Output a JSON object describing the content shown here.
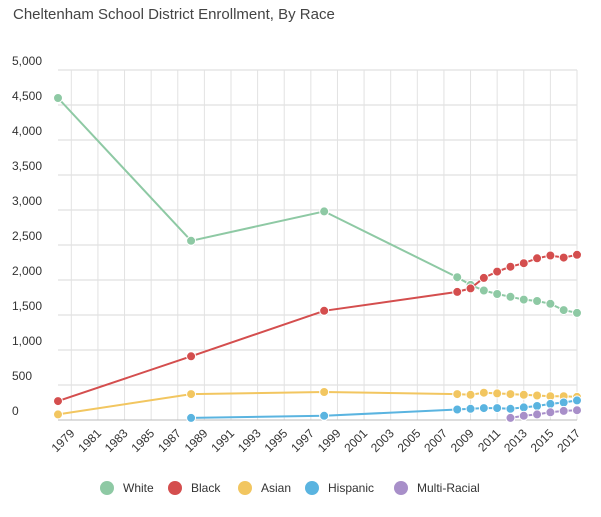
{
  "chart_data": {
    "type": "line",
    "title": "Cheltenham School District Enrollment, By Race",
    "xlabel": "",
    "ylabel": "",
    "ylim": [
      0,
      5000
    ],
    "xlim": [
      1978,
      2017
    ],
    "y_ticks": [
      0,
      500,
      1000,
      1500,
      2000,
      2500,
      3000,
      3500,
      4000,
      4500,
      5000
    ],
    "y_tick_labels": [
      "0",
      "500",
      "1,000",
      "1,500",
      "2,000",
      "2,500",
      "3,000",
      "3,500",
      "4,000",
      "4,500",
      "5,000"
    ],
    "x_ticks": [
      1979,
      1981,
      1983,
      1985,
      1987,
      1989,
      1991,
      1993,
      1995,
      1997,
      1999,
      2001,
      2003,
      2005,
      2007,
      2009,
      2011,
      2013,
      2015,
      2017
    ],
    "x_tick_labels": [
      "1979",
      "1981",
      "1983",
      "1985",
      "1987",
      "1989",
      "1991",
      "1993",
      "1995",
      "1997",
      "1999",
      "2001",
      "2003",
      "2005",
      "2007",
      "2009",
      "2011",
      "2013",
      "2015",
      "2017"
    ],
    "grid": true,
    "legend_position": "bottom",
    "series": [
      {
        "name": "White",
        "color": "#8ec9a4",
        "x": [
          1978,
          1988,
          1998,
          2008,
          2009,
          2010,
          2011,
          2012,
          2013,
          2014,
          2015,
          2016,
          2017
        ],
        "values": [
          4600,
          2560,
          2980,
          2040,
          1930,
          1850,
          1800,
          1760,
          1720,
          1700,
          1660,
          1570,
          1530
        ]
      },
      {
        "name": "Black",
        "color": "#d44e4e",
        "x": [
          1978,
          1988,
          1998,
          2008,
          2009,
          2010,
          2011,
          2012,
          2013,
          2014,
          2015,
          2016,
          2017
        ],
        "values": [
          270,
          910,
          1560,
          1830,
          1880,
          2030,
          2120,
          2190,
          2240,
          2310,
          2350,
          2320,
          2360
        ]
      },
      {
        "name": "Asian",
        "color": "#f2c660",
        "x": [
          1978,
          1988,
          1998,
          2008,
          2009,
          2010,
          2011,
          2012,
          2013,
          2014,
          2015,
          2016,
          2017
        ],
        "values": [
          80,
          370,
          400,
          370,
          360,
          390,
          380,
          370,
          360,
          350,
          340,
          340,
          330
        ]
      },
      {
        "name": "Hispanic",
        "color": "#5ab4e0",
        "x": [
          1988,
          1998,
          2008,
          2009,
          2010,
          2011,
          2012,
          2013,
          2014,
          2015,
          2016,
          2017
        ],
        "values": [
          30,
          60,
          150,
          160,
          170,
          170,
          160,
          180,
          200,
          230,
          250,
          280
        ]
      },
      {
        "name": "Multi-Racial",
        "color": "#a88fc9",
        "x": [
          2012,
          2013,
          2014,
          2015,
          2016,
          2017
        ],
        "values": [
          30,
          60,
          80,
          110,
          130,
          140
        ]
      }
    ]
  }
}
